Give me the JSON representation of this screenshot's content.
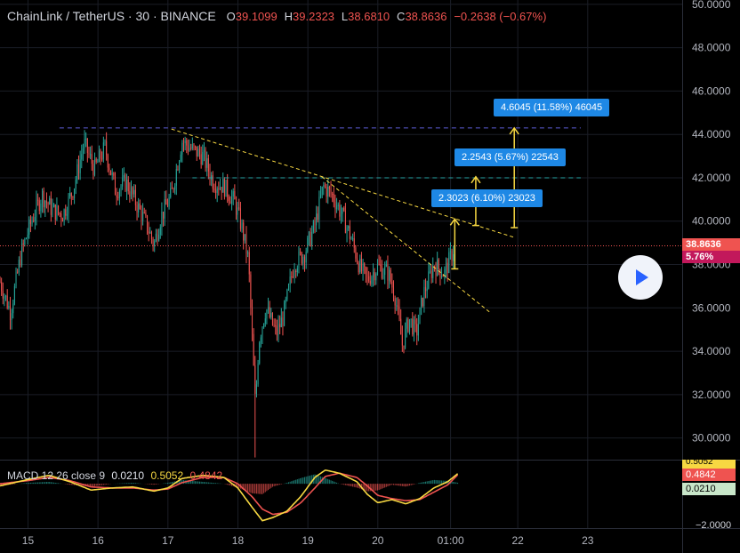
{
  "header": {
    "symbol": "ChainLink / TetherUS · 30 · BINANCE",
    "ohlc": [
      {
        "label": "O",
        "value": "39.1099"
      },
      {
        "label": "H",
        "value": "39.2323"
      },
      {
        "label": "L",
        "value": "38.6810"
      },
      {
        "label": "C",
        "value": "38.8636"
      }
    ],
    "change": "−0.2638 (−0.67%)"
  },
  "price_label": {
    "value": "38.8636",
    "pct": "5.76%"
  },
  "macd": {
    "name": "MACD 12 26 close 9",
    "hist": "0.0210",
    "macd": "0.5052",
    "signal": "0.4842",
    "axis_labels": [
      "0.5052",
      "0.4842",
      "0.0210",
      "−2.0000"
    ]
  },
  "callouts": [
    {
      "text": "4.6045 (11.58%) 46045"
    },
    {
      "text": "2.2543 (5.67%) 22543"
    },
    {
      "text": "2.3023 (6.10%) 23023"
    }
  ],
  "colors": {
    "up": "#26a69a",
    "down": "#ef5350",
    "trend": "#f7d842",
    "hline_purple": "#5c5cd6",
    "hline_teal": "#26a6a6",
    "callout": "#1e88e5",
    "macd_line": "#f7d842",
    "signal_line": "#ef5350"
  },
  "chart_data": {
    "type": "candlestick",
    "y_ticks": [
      "50.0000",
      "48.0000",
      "46.0000",
      "44.0000",
      "42.0000",
      "40.0000",
      "38.0000",
      "36.0000",
      "34.0000",
      "32.0000",
      "30.0000"
    ],
    "ylim": [
      29.0,
      50.2
    ],
    "x_ticks": [
      "15",
      "16",
      "17",
      "18",
      "19",
      "20",
      "01:00",
      "22",
      "23"
    ],
    "x_tick_values": [
      15,
      16,
      17,
      18,
      19,
      20,
      21.04,
      22,
      23
    ],
    "xlim": [
      14.6,
      24.35
    ],
    "last_price": 38.8636,
    "horizontal_lines": [
      {
        "y": 44.3,
        "x_start": 15.45,
        "x_end": 22.9,
        "style": "dashed",
        "color": "purple"
      },
      {
        "y": 42.0,
        "x_start": 17.35,
        "x_end": 22.9,
        "style": "dashed",
        "color": "teal"
      }
    ],
    "trend_lines": [
      {
        "from": [
          17.05,
          44.25
        ],
        "to": [
          21.95,
          39.25
        ]
      },
      {
        "from": [
          19.2,
          42.05
        ],
        "to": [
          21.6,
          35.8
        ]
      }
    ],
    "measures": [
      {
        "x": 21.95,
        "from": 39.7,
        "to": 44.3
      },
      {
        "x": 21.4,
        "from": 39.8,
        "to": 42.05
      },
      {
        "x": 21.1,
        "from": 37.8,
        "to": 40.1
      }
    ],
    "path": [
      [
        14.6,
        37.2
      ],
      [
        14.75,
        35.8
      ],
      [
        14.9,
        38.5
      ],
      [
        15.05,
        40.0
      ],
      [
        15.2,
        41.2
      ],
      [
        15.35,
        40.5
      ],
      [
        15.5,
        40.3
      ],
      [
        15.65,
        41.5
      ],
      [
        15.8,
        43.6
      ],
      [
        15.95,
        42.4
      ],
      [
        16.1,
        43.4
      ],
      [
        16.25,
        41.4
      ],
      [
        16.4,
        41.8
      ],
      [
        16.55,
        40.8
      ],
      [
        16.7,
        39.8
      ],
      [
        16.8,
        38.9
      ],
      [
        16.9,
        40.2
      ],
      [
        17.05,
        41.2
      ],
      [
        17.2,
        43.7
      ],
      [
        17.35,
        43.3
      ],
      [
        17.5,
        43.0
      ],
      [
        17.65,
        41.8
      ],
      [
        17.8,
        41.6
      ],
      [
        17.95,
        40.9
      ],
      [
        18.05,
        39.8
      ],
      [
        18.15,
        38.2
      ],
      [
        18.25,
        31.5
      ],
      [
        18.3,
        34.5
      ],
      [
        18.4,
        36.0
      ],
      [
        18.55,
        34.8
      ],
      [
        18.65,
        35.6
      ],
      [
        18.8,
        38.0
      ],
      [
        18.95,
        38.5
      ],
      [
        19.1,
        39.8
      ],
      [
        19.22,
        41.6
      ],
      [
        19.35,
        41.2
      ],
      [
        19.5,
        40.2
      ],
      [
        19.62,
        39.2
      ],
      [
        19.75,
        37.8
      ],
      [
        19.85,
        37.3
      ],
      [
        20.0,
        37.9
      ],
      [
        20.15,
        37.6
      ],
      [
        20.25,
        36.5
      ],
      [
        20.35,
        34.3
      ],
      [
        20.45,
        35.5
      ],
      [
        20.55,
        34.8
      ],
      [
        20.65,
        36.6
      ],
      [
        20.8,
        38.0
      ],
      [
        20.95,
        37.6
      ],
      [
        21.05,
        38.4
      ],
      [
        21.1,
        38.9
      ]
    ],
    "macd_ylim": [
      -2.1,
      1.1
    ],
    "macd_line": [
      [
        14.6,
        -0.1
      ],
      [
        15.0,
        0.2
      ],
      [
        15.3,
        0.4
      ],
      [
        15.6,
        0.1
      ],
      [
        15.9,
        -0.3
      ],
      [
        16.2,
        -0.2
      ],
      [
        16.5,
        -0.15
      ],
      [
        16.8,
        -0.35
      ],
      [
        17.0,
        -0.2
      ],
      [
        17.2,
        0.25
      ],
      [
        17.5,
        0.4
      ],
      [
        17.8,
        0.3
      ],
      [
        18.0,
        -0.2
      ],
      [
        18.2,
        -1.1
      ],
      [
        18.35,
        -1.75
      ],
      [
        18.5,
        -1.6
      ],
      [
        18.7,
        -1.3
      ],
      [
        18.9,
        -0.6
      ],
      [
        19.1,
        0.3
      ],
      [
        19.25,
        0.65
      ],
      [
        19.45,
        0.5
      ],
      [
        19.7,
        0.1
      ],
      [
        19.85,
        -0.5
      ],
      [
        20.0,
        -0.9
      ],
      [
        20.2,
        -0.75
      ],
      [
        20.4,
        -0.95
      ],
      [
        20.6,
        -0.7
      ],
      [
        20.8,
        -0.2
      ],
      [
        21.0,
        0.1
      ],
      [
        21.15,
        0.5
      ]
    ],
    "signal_line": [
      [
        14.6,
        0.0
      ],
      [
        15.0,
        0.15
      ],
      [
        15.3,
        0.3
      ],
      [
        15.6,
        0.15
      ],
      [
        15.9,
        -0.15
      ],
      [
        16.2,
        -0.2
      ],
      [
        16.5,
        -0.2
      ],
      [
        16.8,
        -0.3
      ],
      [
        17.0,
        -0.25
      ],
      [
        17.2,
        0.05
      ],
      [
        17.5,
        0.3
      ],
      [
        17.8,
        0.3
      ],
      [
        18.0,
        0.0
      ],
      [
        18.2,
        -0.6
      ],
      [
        18.35,
        -1.2
      ],
      [
        18.5,
        -1.45
      ],
      [
        18.7,
        -1.35
      ],
      [
        18.9,
        -0.9
      ],
      [
        19.1,
        -0.2
      ],
      [
        19.25,
        0.35
      ],
      [
        19.45,
        0.5
      ],
      [
        19.7,
        0.3
      ],
      [
        19.85,
        -0.1
      ],
      [
        20.0,
        -0.55
      ],
      [
        20.2,
        -0.7
      ],
      [
        20.4,
        -0.8
      ],
      [
        20.6,
        -0.75
      ],
      [
        20.8,
        -0.4
      ],
      [
        21.0,
        -0.05
      ],
      [
        21.15,
        0.45
      ]
    ]
  }
}
